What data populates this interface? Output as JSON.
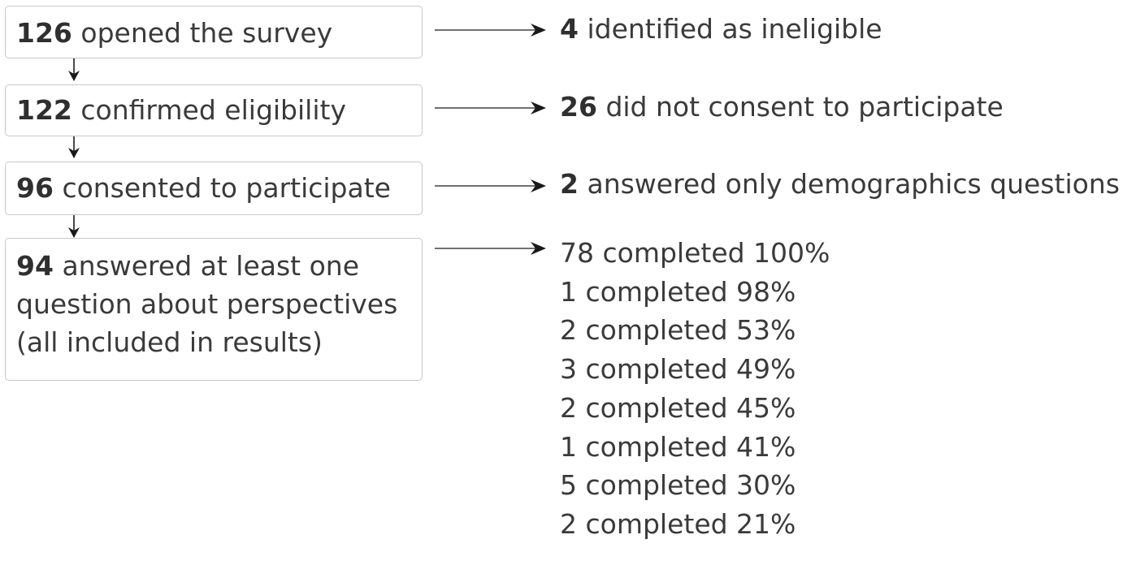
{
  "steps": [
    {
      "count": "126",
      "text": "opened the survey"
    },
    {
      "count": "122",
      "text": "confirmed eligibility"
    },
    {
      "count": "96",
      "text": "consented to participate"
    },
    {
      "count": "94",
      "text": "answered at least one",
      "line2": "question about perspectives",
      "line3": "(all included in results)"
    }
  ],
  "outcomes": [
    {
      "count": "4",
      "text": "identified as ineligible"
    },
    {
      "count": "26",
      "text": "did not consent to participate"
    },
    {
      "count": "2",
      "text": "answered only demographics questions"
    }
  ],
  "completion": [
    "78 completed 100%",
    "1 completed 98%",
    "2 completed 53%",
    "3 completed 49%",
    "2 completed 45%",
    "1 completed 41%",
    "5 completed 30%",
    "2 completed 21%"
  ]
}
